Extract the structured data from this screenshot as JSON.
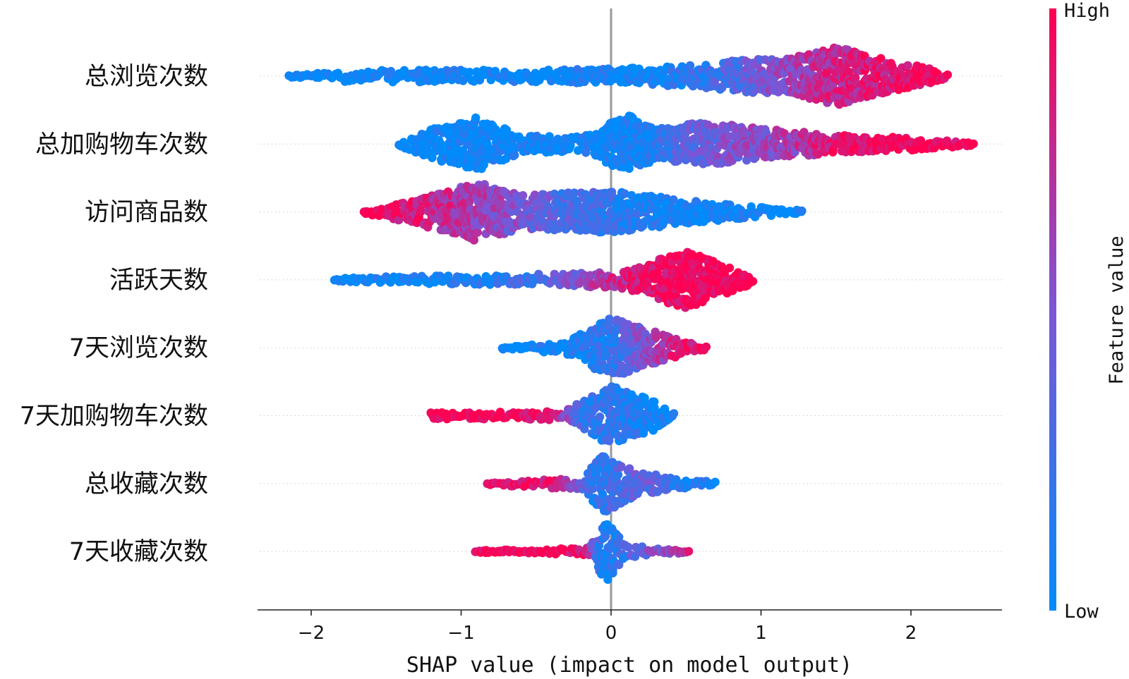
{
  "chart_data": {
    "type": "scatter",
    "subtype": "shap-beeswarm",
    "xlabel": "SHAP value (impact on model output)",
    "xlim": [
      -2.35,
      2.65
    ],
    "xticks": [
      -2,
      -1,
      0,
      1,
      2
    ],
    "xtick_labels": [
      "−2",
      "−1",
      "0",
      "1",
      "2"
    ],
    "colorbar": {
      "label": "Feature value",
      "high_label": "High",
      "low_label": "Low",
      "low_color": "#008bfb",
      "high_color": "#ff0052"
    },
    "zero_line_color": "#999999",
    "features": [
      {
        "name": "总浏览次数",
        "density": [
          [
            -2.15,
            0.04
          ],
          [
            -1.8,
            0.18
          ],
          [
            -1.2,
            0.22
          ],
          [
            -0.6,
            0.2
          ],
          [
            0,
            0.25
          ],
          [
            0.5,
            0.35
          ],
          [
            0.85,
            0.55
          ],
          [
            1.2,
            0.6
          ],
          [
            1.5,
            1.0
          ],
          [
            1.8,
            0.6
          ],
          [
            2.1,
            0.3
          ],
          [
            2.25,
            0.05
          ]
        ],
        "color_ramp": [
          [
            -2.15,
            0.0
          ],
          [
            0.3,
            0.05
          ],
          [
            0.8,
            0.3
          ],
          [
            1.4,
            0.75
          ],
          [
            2.25,
            1.0
          ]
        ]
      },
      {
        "name": "总加购物车次数",
        "density": [
          [
            -1.42,
            0.05
          ],
          [
            -1.2,
            0.5
          ],
          [
            -0.9,
            0.9
          ],
          [
            -0.6,
            0.3
          ],
          [
            -0.2,
            0.25
          ],
          [
            0.12,
            1.0
          ],
          [
            0.3,
            0.5
          ],
          [
            0.6,
            0.75
          ],
          [
            1.0,
            0.55
          ],
          [
            1.5,
            0.3
          ],
          [
            2.0,
            0.22
          ],
          [
            2.42,
            0.05
          ]
        ],
        "color_ramp": [
          [
            -1.42,
            0.0
          ],
          [
            0.2,
            0.05
          ],
          [
            0.5,
            0.35
          ],
          [
            1.2,
            0.65
          ],
          [
            1.6,
            0.95
          ],
          [
            2.42,
            1.0
          ]
        ]
      },
      {
        "name": "访问商品数",
        "density": [
          [
            -1.65,
            0.05
          ],
          [
            -1.3,
            0.4
          ],
          [
            -0.9,
            1.0
          ],
          [
            -0.6,
            0.6
          ],
          [
            -0.3,
            0.65
          ],
          [
            0.0,
            0.7
          ],
          [
            0.5,
            0.4
          ],
          [
            0.9,
            0.2
          ],
          [
            1.28,
            0.05
          ]
        ],
        "color_ramp": [
          [
            -1.65,
            1.0
          ],
          [
            -1.2,
            0.8
          ],
          [
            -0.8,
            0.6
          ],
          [
            -0.3,
            0.3
          ],
          [
            0.2,
            0.1
          ],
          [
            0.7,
            0.02
          ],
          [
            1.28,
            0.0
          ]
        ]
      },
      {
        "name": "活跃天数",
        "density": [
          [
            -1.85,
            0.05
          ],
          [
            -1.4,
            0.12
          ],
          [
            -0.8,
            0.16
          ],
          [
            -0.3,
            0.22
          ],
          [
            0.1,
            0.3
          ],
          [
            0.35,
            0.75
          ],
          [
            0.5,
            1.0
          ],
          [
            0.7,
            0.6
          ],
          [
            0.95,
            0.15
          ]
        ],
        "color_ramp": [
          [
            -1.85,
            0.0
          ],
          [
            -1.0,
            0.08
          ],
          [
            -0.4,
            0.3
          ],
          [
            0.0,
            0.75
          ],
          [
            0.3,
            0.95
          ],
          [
            0.95,
            1.0
          ]
        ]
      },
      {
        "name": "7天浏览次数",
        "density": [
          [
            -0.73,
            0.05
          ],
          [
            -0.3,
            0.2
          ],
          [
            0.0,
            1.0
          ],
          [
            0.2,
            0.7
          ],
          [
            0.4,
            0.35
          ],
          [
            0.64,
            0.05
          ]
        ],
        "color_ramp": [
          [
            -0.73,
            0.0
          ],
          [
            0.0,
            0.15
          ],
          [
            0.2,
            0.5
          ],
          [
            0.45,
            0.85
          ],
          [
            0.64,
            1.0
          ]
        ]
      },
      {
        "name": "7天加购物车次数",
        "density": [
          [
            -1.2,
            0.1
          ],
          [
            -1.08,
            0.12
          ],
          [
            -0.6,
            0.12
          ],
          [
            -0.3,
            0.2
          ],
          [
            0.0,
            1.0
          ],
          [
            0.25,
            0.6
          ],
          [
            0.43,
            0.05
          ]
        ],
        "color_ramp": [
          [
            -1.2,
            1.0
          ],
          [
            -0.4,
            0.95
          ],
          [
            -0.2,
            0.25
          ],
          [
            0.1,
            0.15
          ],
          [
            0.43,
            0.0
          ]
        ]
      },
      {
        "name": "总收藏次数",
        "density": [
          [
            -0.82,
            0.05
          ],
          [
            -0.6,
            0.1
          ],
          [
            -0.2,
            0.2
          ],
          [
            -0.05,
            1.0
          ],
          [
            0.15,
            0.45
          ],
          [
            0.4,
            0.2
          ],
          [
            0.7,
            0.05
          ]
        ],
        "color_ramp": [
          [
            -0.82,
            1.0
          ],
          [
            -0.4,
            0.9
          ],
          [
            -0.1,
            0.15
          ],
          [
            0.2,
            0.4
          ],
          [
            0.7,
            0.0
          ]
        ]
      },
      {
        "name": "7天收藏次数",
        "density": [
          [
            -0.9,
            0.04
          ],
          [
            -0.5,
            0.07
          ],
          [
            -0.15,
            0.12
          ],
          [
            -0.03,
            1.0
          ],
          [
            0.1,
            0.2
          ],
          [
            0.35,
            0.1
          ],
          [
            0.52,
            0.04
          ]
        ],
        "color_ramp": [
          [
            -0.9,
            1.0
          ],
          [
            -0.2,
            0.95
          ],
          [
            -0.05,
            0.05
          ],
          [
            0.2,
            0.4
          ],
          [
            0.52,
            0.75
          ]
        ]
      }
    ]
  }
}
